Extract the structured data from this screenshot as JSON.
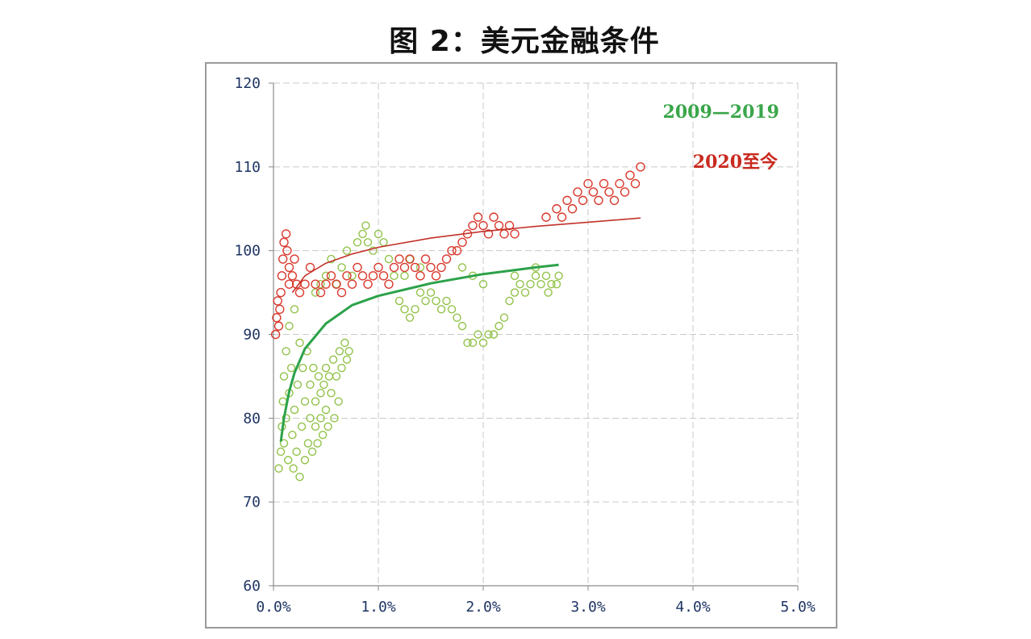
{
  "figure": {
    "title": "图 2：美元金融条件"
  },
  "colors": {
    "green_series": "#92c24a",
    "green_trend": "#2ca24a",
    "green_label": "#3aa64a",
    "red_series": "#d93a2e",
    "red_trend": "#c2322a",
    "red_label": "#c92a1f",
    "axis_text": "#1f3564",
    "grid": "#c9c9c9"
  },
  "chart_data": {
    "type": "scatter",
    "title": "",
    "xlabel": "",
    "ylabel": "",
    "xlim": [
      0,
      5
    ],
    "ylim": [
      60,
      120
    ],
    "grid": true,
    "x_ticks": [
      0,
      1,
      2,
      3,
      4,
      5
    ],
    "x_tick_labels": [
      "0.0%",
      "1.0%",
      "2.0%",
      "3.0%",
      "4.0%",
      "5.0%"
    ],
    "y_ticks": [
      60,
      70,
      80,
      90,
      100,
      110,
      120
    ],
    "y_tick_labels": [
      "60",
      "70",
      "80",
      "90",
      "100",
      "110",
      "120"
    ],
    "series": [
      {
        "name": "2009—2019",
        "color": "#92c24a",
        "points": [
          [
            0.05,
            74
          ],
          [
            0.07,
            76
          ],
          [
            0.08,
            79
          ],
          [
            0.09,
            82
          ],
          [
            0.1,
            85
          ],
          [
            0.1,
            77
          ],
          [
            0.12,
            88
          ],
          [
            0.12,
            80
          ],
          [
            0.14,
            75
          ],
          [
            0.15,
            83
          ],
          [
            0.15,
            91
          ],
          [
            0.17,
            86
          ],
          [
            0.18,
            78
          ],
          [
            0.19,
            74
          ],
          [
            0.2,
            81
          ],
          [
            0.2,
            93
          ],
          [
            0.22,
            76
          ],
          [
            0.23,
            84
          ],
          [
            0.25,
            73
          ],
          [
            0.25,
            89
          ],
          [
            0.27,
            79
          ],
          [
            0.28,
            86
          ],
          [
            0.3,
            75
          ],
          [
            0.3,
            82
          ],
          [
            0.32,
            88
          ],
          [
            0.33,
            77
          ],
          [
            0.35,
            80
          ],
          [
            0.35,
            84
          ],
          [
            0.37,
            76
          ],
          [
            0.38,
            86
          ],
          [
            0.4,
            79
          ],
          [
            0.4,
            82
          ],
          [
            0.42,
            77
          ],
          [
            0.43,
            85
          ],
          [
            0.45,
            80
          ],
          [
            0.45,
            83
          ],
          [
            0.47,
            78
          ],
          [
            0.48,
            84
          ],
          [
            0.5,
            81
          ],
          [
            0.5,
            86
          ],
          [
            0.52,
            79
          ],
          [
            0.53,
            85
          ],
          [
            0.55,
            83
          ],
          [
            0.57,
            87
          ],
          [
            0.58,
            80
          ],
          [
            0.6,
            85
          ],
          [
            0.62,
            82
          ],
          [
            0.63,
            88
          ],
          [
            0.65,
            86
          ],
          [
            0.68,
            89
          ],
          [
            0.7,
            87
          ],
          [
            0.72,
            88
          ],
          [
            0.5,
            97
          ],
          [
            0.55,
            99
          ],
          [
            0.6,
            96
          ],
          [
            0.65,
            98
          ],
          [
            0.7,
            100
          ],
          [
            0.75,
            97
          ],
          [
            0.8,
            101
          ],
          [
            0.85,
            102
          ],
          [
            0.88,
            103
          ],
          [
            0.9,
            101
          ],
          [
            0.95,
            100
          ],
          [
            1.0,
            102
          ],
          [
            1.05,
            101
          ],
          [
            1.1,
            99
          ],
          [
            1.15,
            97
          ],
          [
            1.2,
            94
          ],
          [
            1.25,
            93
          ],
          [
            1.3,
            92
          ],
          [
            1.35,
            93
          ],
          [
            1.4,
            95
          ],
          [
            1.45,
            94
          ],
          [
            1.5,
            95
          ],
          [
            1.55,
            94
          ],
          [
            1.6,
            93
          ],
          [
            1.65,
            94
          ],
          [
            1.7,
            93
          ],
          [
            1.75,
            92
          ],
          [
            1.8,
            91
          ],
          [
            1.85,
            89
          ],
          [
            1.9,
            89
          ],
          [
            1.95,
            90
          ],
          [
            2.0,
            89
          ],
          [
            2.05,
            90
          ],
          [
            2.1,
            90
          ],
          [
            2.15,
            91
          ],
          [
            2.2,
            92
          ],
          [
            2.25,
            94
          ],
          [
            2.3,
            95
          ],
          [
            2.35,
            96
          ],
          [
            2.4,
            95
          ],
          [
            2.45,
            96
          ],
          [
            2.5,
            97
          ],
          [
            2.55,
            96
          ],
          [
            2.6,
            97
          ],
          [
            2.65,
            96
          ],
          [
            2.7,
            96
          ],
          [
            2.72,
            97
          ],
          [
            2.62,
            95
          ],
          [
            2.5,
            98
          ],
          [
            2.3,
            97
          ],
          [
            2.0,
            96
          ],
          [
            1.8,
            98
          ],
          [
            1.9,
            97
          ],
          [
            1.3,
            99
          ],
          [
            1.4,
            98
          ],
          [
            1.25,
            97
          ],
          [
            0.4,
            95
          ],
          [
            0.45,
            96
          ]
        ]
      },
      {
        "name": "2020至今",
        "color": "#d93a2e",
        "points": [
          [
            0.02,
            90
          ],
          [
            0.03,
            92
          ],
          [
            0.04,
            94
          ],
          [
            0.05,
            91
          ],
          [
            0.06,
            93
          ],
          [
            0.07,
            95
          ],
          [
            0.08,
            97
          ],
          [
            0.09,
            99
          ],
          [
            0.1,
            101
          ],
          [
            0.12,
            102
          ],
          [
            0.13,
            100
          ],
          [
            0.15,
            98
          ],
          [
            0.15,
            96
          ],
          [
            0.18,
            97
          ],
          [
            0.2,
            99
          ],
          [
            0.22,
            96
          ],
          [
            0.25,
            95
          ],
          [
            0.3,
            96
          ],
          [
            0.35,
            98
          ],
          [
            0.4,
            96
          ],
          [
            0.45,
            95
          ],
          [
            0.5,
            96
          ],
          [
            0.55,
            97
          ],
          [
            0.6,
            96
          ],
          [
            0.65,
            95
          ],
          [
            0.7,
            97
          ],
          [
            0.75,
            96
          ],
          [
            0.8,
            98
          ],
          [
            0.85,
            97
          ],
          [
            0.9,
            96
          ],
          [
            0.95,
            97
          ],
          [
            1.0,
            98
          ],
          [
            1.05,
            97
          ],
          [
            1.1,
            96
          ],
          [
            1.15,
            98
          ],
          [
            1.2,
            99
          ],
          [
            1.25,
            98
          ],
          [
            1.3,
            99
          ],
          [
            1.35,
            98
          ],
          [
            1.4,
            97
          ],
          [
            1.45,
            99
          ],
          [
            1.5,
            98
          ],
          [
            1.55,
            97
          ],
          [
            1.6,
            98
          ],
          [
            1.65,
            99
          ],
          [
            1.7,
            100
          ],
          [
            1.75,
            100
          ],
          [
            1.8,
            101
          ],
          [
            1.85,
            102
          ],
          [
            1.9,
            103
          ],
          [
            1.95,
            104
          ],
          [
            2.0,
            103
          ],
          [
            2.05,
            102
          ],
          [
            2.1,
            104
          ],
          [
            2.15,
            103
          ],
          [
            2.2,
            102
          ],
          [
            2.25,
            103
          ],
          [
            2.3,
            102
          ],
          [
            2.6,
            104
          ],
          [
            2.7,
            105
          ],
          [
            2.75,
            104
          ],
          [
            2.8,
            106
          ],
          [
            2.85,
            105
          ],
          [
            2.9,
            107
          ],
          [
            2.95,
            106
          ],
          [
            3.0,
            108
          ],
          [
            3.05,
            107
          ],
          [
            3.1,
            106
          ],
          [
            3.15,
            108
          ],
          [
            3.2,
            107
          ],
          [
            3.25,
            106
          ],
          [
            3.3,
            108
          ],
          [
            3.35,
            107
          ],
          [
            3.4,
            109
          ],
          [
            3.45,
            108
          ],
          [
            3.5,
            110
          ]
        ]
      }
    ],
    "trendlines": [
      {
        "name": "2009—2019 trend",
        "type": "logarithmic",
        "color": "#2ca24a",
        "x_range": [
          0.07,
          2.72
        ],
        "points": [
          [
            0.07,
            77.2
          ],
          [
            0.1,
            80.0
          ],
          [
            0.15,
            83.2
          ],
          [
            0.2,
            85.4
          ],
          [
            0.3,
            88.3
          ],
          [
            0.5,
            91.3
          ],
          [
            0.75,
            93.5
          ],
          [
            1.0,
            94.6
          ],
          [
            1.5,
            96.1
          ],
          [
            2.0,
            97.2
          ],
          [
            2.5,
            98.0
          ],
          [
            2.72,
            98.3
          ]
        ]
      },
      {
        "name": "2020至今 trend",
        "type": "logarithmic",
        "color": "#c2322a",
        "x_range": [
          0.18,
          3.5
        ],
        "points": [
          [
            0.18,
            95.0
          ],
          [
            0.3,
            97.0
          ],
          [
            0.5,
            98.5
          ],
          [
            0.75,
            99.6
          ],
          [
            1.0,
            100.4
          ],
          [
            1.5,
            101.5
          ],
          [
            2.0,
            102.3
          ],
          [
            2.5,
            102.9
          ],
          [
            3.0,
            103.4
          ],
          [
            3.5,
            103.9
          ]
        ]
      }
    ],
    "legend": [
      {
        "label": "2009—2019",
        "color": "#3aa64a",
        "position": "top-right"
      },
      {
        "label": "2020至今",
        "color": "#c92a1f",
        "position": "top-right"
      }
    ]
  }
}
